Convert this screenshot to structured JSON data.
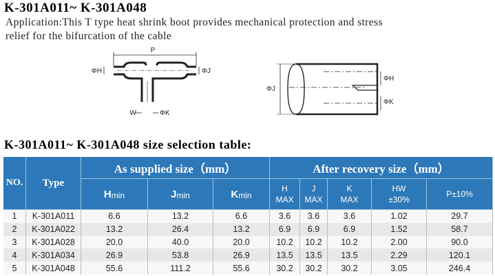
{
  "header": {
    "title": "K-301A011~ K-301A048",
    "description": [
      "Application:This T type heat shrink boot provides mechanical protection and stress",
      "relief for the bifurcation of the cable"
    ]
  },
  "diagrams": {
    "t_boot": {
      "labels": [
        "P",
        "ΦH",
        "ΦJ",
        "W",
        "ΦK"
      ]
    },
    "end_view": {
      "labels": [
        "ΦJ",
        "ΦH",
        "ΦK"
      ]
    }
  },
  "table": {
    "title": "K-301A011~ K-301A048 size selection table:",
    "group_headers": [
      "NO.",
      "Type",
      "As supplied size（mm）",
      "After recovery size（mm）"
    ],
    "supplied_columns": [
      {
        "main": "H",
        "sub": "min"
      },
      {
        "main": "J",
        "sub": "min"
      },
      {
        "main": "K",
        "sub": "min"
      }
    ],
    "recovery_columns": [
      [
        "H",
        "MAX"
      ],
      [
        "J",
        "MAX"
      ],
      [
        "K",
        "MAX"
      ],
      [
        "HW",
        "±30%"
      ],
      [
        "P±10%"
      ]
    ],
    "rows": [
      [
        "1",
        "K-301A011",
        "6.6",
        "13.2",
        "6.6",
        "3.6",
        "3.6",
        "3.6",
        "1.02",
        "29.7"
      ],
      [
        "2",
        "K-301A022",
        "13.2",
        "26.4",
        "13.2",
        "6.9",
        "6.9",
        "6.9",
        "1.52",
        "58.7"
      ],
      [
        "3",
        "K-301A028",
        "20.0",
        "40.0",
        "20.0",
        "10.2",
        "10.2",
        "10.2",
        "2.00",
        "90.0"
      ],
      [
        "4",
        "K-301A034",
        "26.9",
        "53.8",
        "26.9",
        "13.5",
        "13.5",
        "13.5",
        "2.29",
        "120.1"
      ],
      [
        "5",
        "K-301A048",
        "55.6",
        "111.2",
        "55.6",
        "30.2",
        "30.2",
        "30.2",
        "3.05",
        "246.4"
      ]
    ]
  }
}
